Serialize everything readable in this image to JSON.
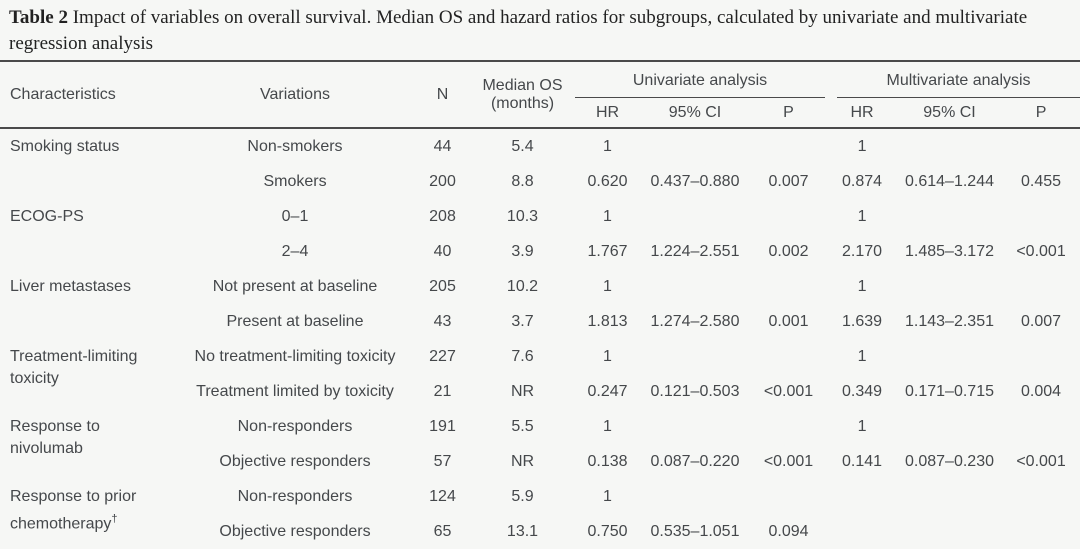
{
  "page": {
    "background": "#f6f7f5"
  },
  "caption": {
    "label": "Table 2",
    "text": " Impact of variables on overall survival. Median OS and hazard ratios for subgroups, calculated by univariate and multivariate regression analysis"
  },
  "colors": {
    "rule": "#4a4a4a",
    "text": "#45484b",
    "caption_text": "#222222"
  },
  "table": {
    "headers": {
      "characteristics": "Characteristics",
      "variations": "Variations",
      "n": "N",
      "median_os": "Median OS (months)",
      "univariate": "Univariate analysis",
      "multivariate": "Multivariate analysis",
      "hr": "HR",
      "ci": "95% CI",
      "p": "P"
    },
    "groups": [
      {
        "characteristic": "Smoking status",
        "characteristic_sup": "",
        "rows": [
          {
            "variation": "Non-smokers",
            "n": "44",
            "median_os": "5.4",
            "uni_hr": "1",
            "uni_ci": "",
            "uni_p": "",
            "multi_hr": "1",
            "multi_ci": "",
            "multi_p": ""
          },
          {
            "variation": "Smokers",
            "n": "200",
            "median_os": "8.8",
            "uni_hr": "0.620",
            "uni_ci": "0.437–0.880",
            "uni_p": "0.007",
            "multi_hr": "0.874",
            "multi_ci": "0.614–1.244",
            "multi_p": "0.455"
          }
        ]
      },
      {
        "characteristic": "ECOG-PS",
        "characteristic_sup": "",
        "rows": [
          {
            "variation": "0–1",
            "n": "208",
            "median_os": "10.3",
            "uni_hr": "1",
            "uni_ci": "",
            "uni_p": "",
            "multi_hr": "1",
            "multi_ci": "",
            "multi_p": ""
          },
          {
            "variation": "2–4",
            "n": "40",
            "median_os": "3.9",
            "uni_hr": "1.767",
            "uni_ci": "1.224–2.551",
            "uni_p": "0.002",
            "multi_hr": "2.170",
            "multi_ci": "1.485–3.172",
            "multi_p": "<0.001"
          }
        ]
      },
      {
        "characteristic": "Liver metastases",
        "characteristic_sup": "",
        "rows": [
          {
            "variation": "Not present at baseline",
            "n": "205",
            "median_os": "10.2",
            "uni_hr": "1",
            "uni_ci": "",
            "uni_p": "",
            "multi_hr": "1",
            "multi_ci": "",
            "multi_p": ""
          },
          {
            "variation": "Present at baseline",
            "n": "43",
            "median_os": "3.7",
            "uni_hr": "1.813",
            "uni_ci": "1.274–2.580",
            "uni_p": "0.001",
            "multi_hr": "1.639",
            "multi_ci": "1.143–2.351",
            "multi_p": "0.007"
          }
        ]
      },
      {
        "characteristic": "Treatment-limiting toxicity",
        "characteristic_sup": "",
        "rows": [
          {
            "variation": "No treatment-limiting toxicity",
            "n": "227",
            "median_os": "7.6",
            "uni_hr": "1",
            "uni_ci": "",
            "uni_p": "",
            "multi_hr": "1",
            "multi_ci": "",
            "multi_p": ""
          },
          {
            "variation": "Treatment limited by toxicity",
            "n": "21",
            "median_os": "NR",
            "uni_hr": "0.247",
            "uni_ci": "0.121–0.503",
            "uni_p": "<0.001",
            "multi_hr": "0.349",
            "multi_ci": "0.171–0.715",
            "multi_p": "0.004"
          }
        ]
      },
      {
        "characteristic": "Response to nivolumab",
        "characteristic_sup": "",
        "rows": [
          {
            "variation": "Non-responders",
            "n": "191",
            "median_os": "5.5",
            "uni_hr": "1",
            "uni_ci": "",
            "uni_p": "",
            "multi_hr": "1",
            "multi_ci": "",
            "multi_p": ""
          },
          {
            "variation": "Objective responders",
            "n": "57",
            "median_os": "NR",
            "uni_hr": "0.138",
            "uni_ci": "0.087–0.220",
            "uni_p": "<0.001",
            "multi_hr": "0.141",
            "multi_ci": "0.087–0.230",
            "multi_p": "<0.001"
          }
        ]
      },
      {
        "characteristic": "Response to prior chemotherapy",
        "characteristic_sup": "†",
        "rows": [
          {
            "variation": "Non-responders",
            "n": "124",
            "median_os": "5.9",
            "uni_hr": "1",
            "uni_ci": "",
            "uni_p": "",
            "multi_hr": "",
            "multi_ci": "",
            "multi_p": ""
          },
          {
            "variation": "Objective responders",
            "n": "65",
            "median_os": "13.1",
            "uni_hr": "0.750",
            "uni_ci": "0.535–1.051",
            "uni_p": "0.094",
            "multi_hr": "",
            "multi_ci": "",
            "multi_p": ""
          }
        ]
      }
    ]
  }
}
